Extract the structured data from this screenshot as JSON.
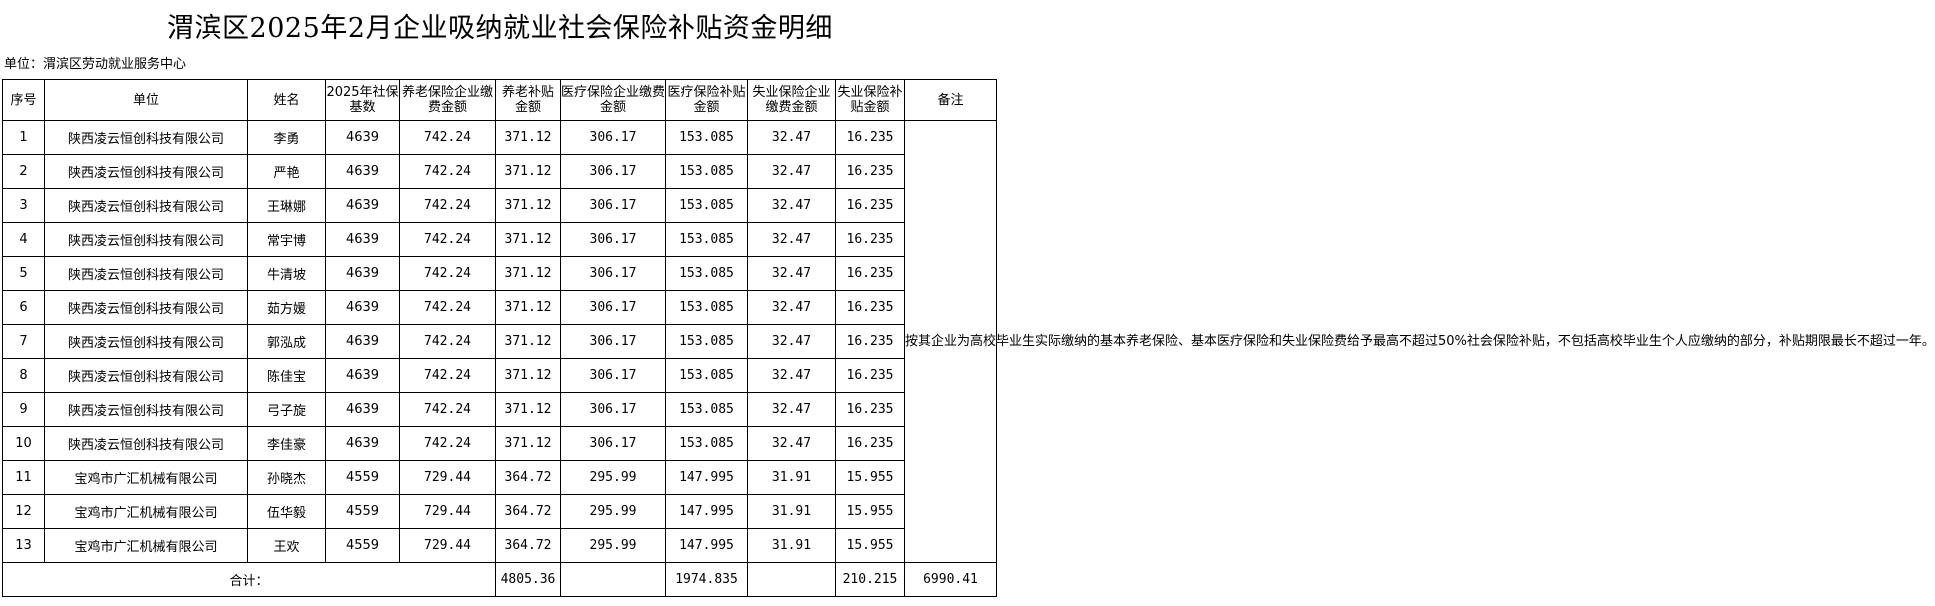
{
  "title": "渭滨区2025年2月企业吸纳就业社会保险补贴资金明细",
  "unit_label": "单位：渭滨区劳动就业服务中心",
  "headers": {
    "seq": "序号",
    "company": "单位",
    "name": "姓名",
    "base": "2025年社保基数",
    "pension_pay": "养老保险企业缴费金额",
    "pension_sub": "养老补贴金额",
    "medical_pay": "医疗保险企业缴费金额",
    "medical_sub": "医疗保险补贴金额",
    "unemp_pay": "失业保险企业缴费金额",
    "unemp_sub": "失业保险补贴金额",
    "remark": "备注"
  },
  "rows": [
    {
      "seq": "1",
      "company": "陕西凌云恒创科技有限公司",
      "name": "李勇",
      "base": "4639",
      "pension_pay": "742.24",
      "pension_sub": "371.12",
      "medical_pay": "306.17",
      "medical_sub": "153.085",
      "unemp_pay": "32.47",
      "unemp_sub": "16.235"
    },
    {
      "seq": "2",
      "company": "陕西凌云恒创科技有限公司",
      "name": "严艳",
      "base": "4639",
      "pension_pay": "742.24",
      "pension_sub": "371.12",
      "medical_pay": "306.17",
      "medical_sub": "153.085",
      "unemp_pay": "32.47",
      "unemp_sub": "16.235"
    },
    {
      "seq": "3",
      "company": "陕西凌云恒创科技有限公司",
      "name": "王琳娜",
      "base": "4639",
      "pension_pay": "742.24",
      "pension_sub": "371.12",
      "medical_pay": "306.17",
      "medical_sub": "153.085",
      "unemp_pay": "32.47",
      "unemp_sub": "16.235"
    },
    {
      "seq": "4",
      "company": "陕西凌云恒创科技有限公司",
      "name": "常宇博",
      "base": "4639",
      "pension_pay": "742.24",
      "pension_sub": "371.12",
      "medical_pay": "306.17",
      "medical_sub": "153.085",
      "unemp_pay": "32.47",
      "unemp_sub": "16.235"
    },
    {
      "seq": "5",
      "company": "陕西凌云恒创科技有限公司",
      "name": "牛清坡",
      "base": "4639",
      "pension_pay": "742.24",
      "pension_sub": "371.12",
      "medical_pay": "306.17",
      "medical_sub": "153.085",
      "unemp_pay": "32.47",
      "unemp_sub": "16.235"
    },
    {
      "seq": "6",
      "company": "陕西凌云恒创科技有限公司",
      "name": "茹方媛",
      "base": "4639",
      "pension_pay": "742.24",
      "pension_sub": "371.12",
      "medical_pay": "306.17",
      "medical_sub": "153.085",
      "unemp_pay": "32.47",
      "unemp_sub": "16.235"
    },
    {
      "seq": "7",
      "company": "陕西凌云恒创科技有限公司",
      "name": "郭泓成",
      "base": "4639",
      "pension_pay": "742.24",
      "pension_sub": "371.12",
      "medical_pay": "306.17",
      "medical_sub": "153.085",
      "unemp_pay": "32.47",
      "unemp_sub": "16.235"
    },
    {
      "seq": "8",
      "company": "陕西凌云恒创科技有限公司",
      "name": "陈佳宝",
      "base": "4639",
      "pension_pay": "742.24",
      "pension_sub": "371.12",
      "medical_pay": "306.17",
      "medical_sub": "153.085",
      "unemp_pay": "32.47",
      "unemp_sub": "16.235"
    },
    {
      "seq": "9",
      "company": "陕西凌云恒创科技有限公司",
      "name": "弓子旋",
      "base": "4639",
      "pension_pay": "742.24",
      "pension_sub": "371.12",
      "medical_pay": "306.17",
      "medical_sub": "153.085",
      "unemp_pay": "32.47",
      "unemp_sub": "16.235"
    },
    {
      "seq": "10",
      "company": "陕西凌云恒创科技有限公司",
      "name": "李佳豪",
      "base": "4639",
      "pension_pay": "742.24",
      "pension_sub": "371.12",
      "medical_pay": "306.17",
      "medical_sub": "153.085",
      "unemp_pay": "32.47",
      "unemp_sub": "16.235"
    },
    {
      "seq": "11",
      "company": "宝鸡市广汇机械有限公司",
      "name": "孙晓杰",
      "base": "4559",
      "pension_pay": "729.44",
      "pension_sub": "364.72",
      "medical_pay": "295.99",
      "medical_sub": "147.995",
      "unemp_pay": "31.91",
      "unemp_sub": "15.955"
    },
    {
      "seq": "12",
      "company": "宝鸡市广汇机械有限公司",
      "name": "伍华毅",
      "base": "4559",
      "pension_pay": "729.44",
      "pension_sub": "364.72",
      "medical_pay": "295.99",
      "medical_sub": "147.995",
      "unemp_pay": "31.91",
      "unemp_sub": "15.955"
    },
    {
      "seq": "13",
      "company": "宝鸡市广汇机械有限公司",
      "name": "王欢",
      "base": "4559",
      "pension_pay": "729.44",
      "pension_sub": "364.72",
      "medical_pay": "295.99",
      "medical_sub": "147.995",
      "unemp_pay": "31.91",
      "unemp_sub": "15.955"
    }
  ],
  "remark": "按其企业为高校毕业生实际缴纳的基本养老保险、基本医疗保险和失业保险费给予最高不超过50%社会保险补贴，不包括高校毕业生个人应缴纳的部分，补贴期限最长不超过一年。",
  "totals": {
    "label": "合计：",
    "pension_sub": "4805.36",
    "medical_sub": "1974.835",
    "unemp_sub": "210.215",
    "grand_total": "6990.41"
  }
}
